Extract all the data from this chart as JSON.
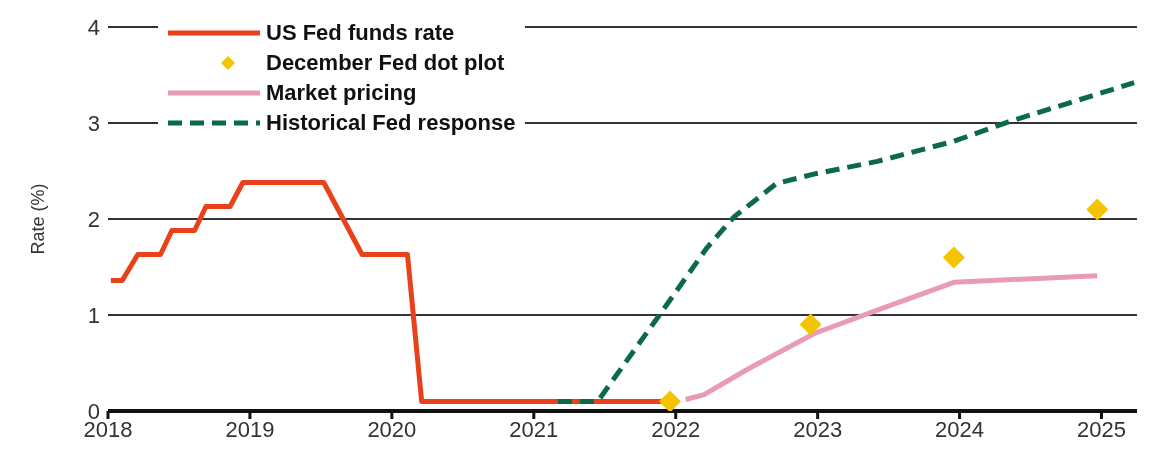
{
  "chart_data": {
    "type": "line",
    "ylabel": "Rate (%)",
    "xlim": [
      2018,
      2025.25
    ],
    "xticks": [
      2018,
      2019,
      2020,
      2021,
      2022,
      2023,
      2024,
      2025
    ],
    "ylim": [
      0,
      4
    ],
    "yticks": [
      0,
      1,
      2,
      3,
      4
    ],
    "grid": "y",
    "legend": "top left",
    "series": [
      {
        "name": "US Fed funds rate",
        "color": "#e8411b",
        "line_style": "solid",
        "x": [
          2018.02,
          2018.1,
          2018.21,
          2018.37,
          2018.45,
          2018.61,
          2018.69,
          2018.86,
          2018.95,
          2019.52,
          2019.79,
          2020.11,
          2020.21,
          2021.9
        ],
        "values": [
          1.36,
          1.36,
          1.63,
          1.63,
          1.88,
          1.88,
          2.13,
          2.13,
          2.38,
          2.38,
          1.63,
          1.63,
          0.1,
          0.1
        ]
      },
      {
        "name": "December Fed dot plot",
        "type": "scatter",
        "color": "#f2c500",
        "marker": "diamond",
        "x": [
          2021.96,
          2022.95,
          2023.96,
          2024.97
        ],
        "values": [
          0.1,
          0.9,
          1.6,
          2.1
        ]
      },
      {
        "name": "Market pricing",
        "color": "#e89ab8",
        "line_style": "solid",
        "x": [
          2022.07,
          2022.2,
          2022.5,
          2022.98,
          2023.42,
          2023.96,
          2024.97
        ],
        "values": [
          0.12,
          0.17,
          0.43,
          0.81,
          1.05,
          1.34,
          1.41
        ]
      },
      {
        "name": "Historical Fed response",
        "color": "#0a6b45",
        "line_style": "dashed",
        "x": [
          2021.17,
          2021.45,
          2021.9,
          2022.22,
          2022.41,
          2022.71,
          2022.98,
          2023.42,
          2023.96,
          2024.34,
          2025.23
        ],
        "values": [
          0.1,
          0.1,
          1.03,
          1.7,
          2.02,
          2.37,
          2.47,
          2.6,
          2.81,
          3.01,
          3.42
        ]
      }
    ]
  }
}
